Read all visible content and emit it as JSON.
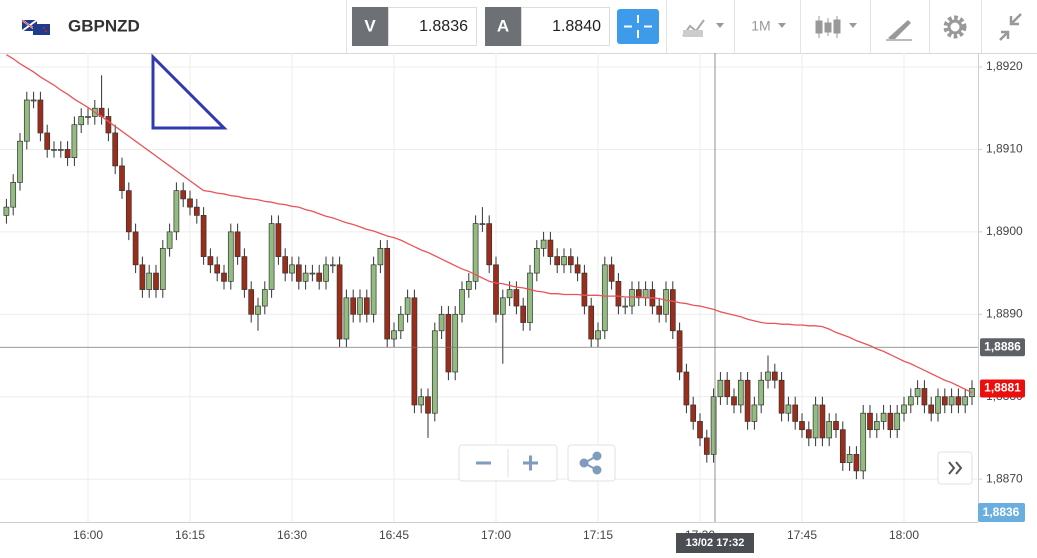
{
  "toolbar": {
    "symbol": "GBPNZD",
    "bid_tag": "V",
    "bid": "1.8836",
    "ask_tag": "A",
    "ask": "1.8840",
    "period": "1M"
  },
  "chart_data": {
    "type": "candlestick",
    "categories": [
      null,
      null,
      null,
      null,
      null,
      null,
      null,
      null,
      null,
      null,
      null,
      null,
      "16:00",
      null,
      null,
      null,
      null,
      null,
      null,
      null,
      null,
      null,
      null,
      null,
      null,
      null,
      null,
      "16:15",
      null,
      null,
      null,
      null,
      null,
      null,
      null,
      null,
      null,
      null,
      null,
      null,
      null,
      null,
      "16:30",
      null,
      null,
      null,
      null,
      null,
      null,
      null,
      null,
      null,
      null,
      null,
      null,
      null,
      null,
      "16:45",
      null,
      null,
      null,
      null,
      null,
      null,
      null,
      null,
      null,
      null,
      null,
      null,
      null,
      null,
      "17:00",
      null,
      null,
      null,
      null,
      null,
      null,
      null,
      null,
      null,
      null,
      null,
      null,
      null,
      null,
      "17:15",
      null,
      null,
      null,
      null,
      null,
      null,
      null,
      null,
      null,
      null,
      null,
      null,
      null,
      null,
      "17:30",
      null,
      null,
      null,
      null,
      null,
      null,
      null,
      null,
      null,
      null,
      null,
      null,
      null,
      null,
      "17:45",
      null,
      null,
      null,
      null,
      null,
      null,
      null,
      null,
      null,
      null,
      null,
      null,
      null,
      null,
      "18:00",
      null,
      null,
      null,
      null,
      null,
      null,
      null,
      null,
      null,
      null
    ],
    "open": [
      1.8902,
      1.8903,
      1.8906,
      1.8911,
      1.8916,
      1.8916,
      1.8912,
      1.891,
      1.891,
      1.891,
      1.8909,
      1.8913,
      1.8914,
      1.8914,
      1.8915,
      1.8914,
      1.8912,
      1.8908,
      1.8905,
      1.89,
      1.8896,
      1.8893,
      1.8895,
      1.8893,
      1.8898,
      1.89,
      1.8905,
      1.8904,
      1.8903,
      1.8902,
      1.8897,
      1.8896,
      1.8895,
      1.8894,
      1.89,
      1.8897,
      1.8893,
      1.889,
      1.8891,
      1.8893,
      1.8901,
      1.8897,
      1.8895,
      1.8896,
      1.8894,
      1.8895,
      1.8895,
      1.8894,
      1.8896,
      1.8896,
      1.8887,
      1.8892,
      1.889,
      1.8892,
      1.889,
      1.8896,
      1.8898,
      1.8887,
      1.8888,
      1.889,
      1.8892,
      1.8879,
      1.888,
      1.8878,
      1.8888,
      1.889,
      1.8883,
      1.889,
      1.8893,
      1.8894,
      1.8901,
      1.8901,
      1.8896,
      1.889,
      1.8892,
      1.8893,
      1.8891,
      1.8889,
      1.8895,
      1.8898,
      1.8899,
      1.8897,
      1.8896,
      1.8897,
      1.8896,
      1.8895,
      1.8891,
      1.8887,
      1.8888,
      1.8896,
      1.8894,
      1.8891,
      1.8891,
      1.8893,
      1.8892,
      1.8893,
      1.8891,
      1.889,
      1.8893,
      1.8888,
      1.8883,
      1.8879,
      1.8877,
      1.8875,
      1.8873,
      1.888,
      1.8882,
      1.888,
      1.8879,
      1.8882,
      1.8877,
      1.8879,
      1.8882,
      1.8883,
      1.8882,
      1.8878,
      1.8879,
      1.8877,
      1.8876,
      1.8875,
      1.8879,
      1.8875,
      1.8877,
      1.8876,
      1.8872,
      1.8873,
      1.8871,
      1.8878,
      1.8876,
      1.8877,
      1.8878,
      1.8876,
      1.8878,
      1.8879,
      1.888,
      1.8881,
      1.8879,
      1.8878,
      1.888,
      1.8879,
      1.888,
      1.8879,
      1.888
    ],
    "high": [
      1.8904,
      1.8907,
      1.8912,
      1.8917,
      1.8917,
      1.8917,
      1.8913,
      1.8911,
      1.8911,
      1.8911,
      1.8914,
      1.8915,
      1.8915,
      1.8916,
      1.8919,
      1.8915,
      1.8913,
      1.8909,
      1.8906,
      1.8901,
      1.8897,
      1.8896,
      1.8896,
      1.8899,
      1.8901,
      1.8906,
      1.8906,
      1.8905,
      1.8904,
      1.8903,
      1.8898,
      1.8897,
      1.8896,
      1.8901,
      1.8901,
      1.8898,
      1.8894,
      1.8892,
      1.8894,
      1.8902,
      1.8902,
      1.8898,
      1.8897,
      1.8897,
      1.8896,
      1.8896,
      1.8896,
      1.8897,
      1.8897,
      1.8897,
      1.8893,
      1.8893,
      1.8893,
      1.8893,
      1.8897,
      1.8899,
      1.8899,
      1.8889,
      1.8891,
      1.8893,
      1.8893,
      1.8881,
      1.8881,
      1.8889,
      1.8891,
      1.8891,
      1.8891,
      1.8894,
      1.8895,
      1.8902,
      1.8903,
      1.8902,
      1.8897,
      1.8893,
      1.8894,
      1.8894,
      1.8892,
      1.8896,
      1.8899,
      1.89,
      1.89,
      1.8898,
      1.8898,
      1.8898,
      1.8897,
      1.8896,
      1.8892,
      1.8889,
      1.8897,
      1.8897,
      1.8895,
      1.8892,
      1.8894,
      1.8894,
      1.8894,
      1.8894,
      1.8892,
      1.8894,
      1.8894,
      1.8889,
      1.8884,
      1.888,
      1.8878,
      1.8876,
      1.8881,
      1.8883,
      1.8883,
      1.8881,
      1.8883,
      1.8883,
      1.888,
      1.8883,
      1.8885,
      1.8884,
      1.8883,
      1.888,
      1.888,
      1.8878,
      1.8877,
      1.888,
      1.888,
      1.8878,
      1.8878,
      1.8877,
      1.8874,
      1.8874,
      1.8879,
      1.8879,
      1.8878,
      1.8879,
      1.8879,
      1.8879,
      1.888,
      1.8881,
      1.8882,
      1.8882,
      1.888,
      1.8881,
      1.8881,
      1.8881,
      1.8881,
      1.8881,
      1.8882
    ],
    "low": [
      1.8901,
      1.8902,
      1.8905,
      1.891,
      1.8915,
      1.8911,
      1.8909,
      1.8909,
      1.8909,
      1.8908,
      1.8908,
      1.8912,
      1.8913,
      1.8913,
      1.8913,
      1.8911,
      1.8907,
      1.8904,
      1.8899,
      1.8895,
      1.8892,
      1.8892,
      1.8892,
      1.8892,
      1.8897,
      1.8899,
      1.8903,
      1.8902,
      1.8901,
      1.8896,
      1.8895,
      1.8894,
      1.8893,
      1.8893,
      1.8896,
      1.8892,
      1.8889,
      1.8888,
      1.889,
      1.8892,
      1.8896,
      1.8894,
      1.8894,
      1.8893,
      1.8893,
      1.8894,
      1.8893,
      1.8893,
      1.8895,
      1.8886,
      1.8886,
      1.8889,
      1.8889,
      1.8889,
      1.8889,
      1.8895,
      1.8886,
      1.8886,
      1.8887,
      1.8889,
      1.8878,
      1.8878,
      1.8875,
      1.8877,
      1.8887,
      1.8882,
      1.8882,
      1.8889,
      1.8892,
      1.8893,
      1.89,
      1.8895,
      1.8889,
      1.8884,
      1.8891,
      1.889,
      1.8888,
      1.8888,
      1.8894,
      1.8897,
      1.8896,
      1.8895,
      1.8895,
      1.8895,
      1.8894,
      1.889,
      1.8886,
      1.8886,
      1.8887,
      1.8893,
      1.889,
      1.889,
      1.889,
      1.8891,
      1.8891,
      1.889,
      1.8889,
      1.8889,
      1.8887,
      1.8882,
      1.8878,
      1.8876,
      1.8874,
      1.8872,
      1.8872,
      1.8879,
      1.8879,
      1.8878,
      1.8878,
      1.8876,
      1.8876,
      1.8878,
      1.8881,
      1.8881,
      1.8877,
      1.8877,
      1.8876,
      1.8875,
      1.8874,
      1.8874,
      1.8874,
      1.8874,
      1.8875,
      1.8871,
      1.8871,
      1.887,
      1.887,
      1.8875,
      1.8875,
      1.8876,
      1.8875,
      1.8875,
      1.8877,
      1.8878,
      1.8879,
      1.8878,
      1.8877,
      1.8877,
      1.8878,
      1.8878,
      1.8878,
      1.8878,
      1.8879
    ],
    "close": [
      1.8903,
      1.8906,
      1.8911,
      1.8916,
      1.8916,
      1.8912,
      1.891,
      1.891,
      1.891,
      1.8909,
      1.8913,
      1.8914,
      1.8914,
      1.8915,
      1.8914,
      1.8912,
      1.8908,
      1.8905,
      1.89,
      1.8896,
      1.8893,
      1.8895,
      1.8893,
      1.8898,
      1.89,
      1.8905,
      1.8904,
      1.8903,
      1.8902,
      1.8897,
      1.8896,
      1.8895,
      1.8894,
      1.89,
      1.8897,
      1.8893,
      1.889,
      1.8891,
      1.8893,
      1.8901,
      1.8897,
      1.8895,
      1.8896,
      1.8894,
      1.8895,
      1.8895,
      1.8894,
      1.8896,
      1.8896,
      1.8887,
      1.8892,
      1.889,
      1.8892,
      1.889,
      1.8896,
      1.8898,
      1.8887,
      1.8888,
      1.889,
      1.8892,
      1.8879,
      1.888,
      1.8878,
      1.8888,
      1.889,
      1.8883,
      1.889,
      1.8893,
      1.8894,
      1.8901,
      1.8901,
      1.8896,
      1.889,
      1.8892,
      1.8893,
      1.8891,
      1.8889,
      1.8895,
      1.8898,
      1.8899,
      1.8897,
      1.8896,
      1.8897,
      1.8896,
      1.8895,
      1.8891,
      1.8887,
      1.8888,
      1.8896,
      1.8894,
      1.8891,
      1.8891,
      1.8893,
      1.8892,
      1.8893,
      1.8891,
      1.889,
      1.8893,
      1.8888,
      1.8883,
      1.8879,
      1.8877,
      1.8875,
      1.8873,
      1.888,
      1.8882,
      1.888,
      1.8879,
      1.8882,
      1.8877,
      1.8879,
      1.8882,
      1.8883,
      1.8882,
      1.8878,
      1.8879,
      1.8877,
      1.8876,
      1.8875,
      1.8879,
      1.8875,
      1.8877,
      1.8876,
      1.8872,
      1.8873,
      1.8871,
      1.8878,
      1.8876,
      1.8877,
      1.8878,
      1.8876,
      1.8878,
      1.8879,
      1.888,
      1.8881,
      1.8879,
      1.8878,
      1.888,
      1.8879,
      1.888,
      1.8879,
      1.888,
      1.8881
    ],
    "up_color": "#93bd80",
    "down_color": "#9c2d1b",
    "moving_average": {
      "color": "#e8555a",
      "values": [
        1.89215,
        1.8921,
        1.89204,
        1.89199,
        1.89194,
        1.89188,
        1.89183,
        1.89178,
        1.89172,
        1.89167,
        1.89161,
        1.89156,
        1.89151,
        1.89145,
        1.8914,
        1.89134,
        1.89128,
        1.89122,
        1.89116,
        1.8911,
        1.89104,
        1.89098,
        1.89092,
        1.89086,
        1.8908,
        1.89074,
        1.89068,
        1.89062,
        1.89056,
        1.8905,
        1.89049,
        1.89047,
        1.89046,
        1.89044,
        1.89043,
        1.89041,
        1.8904,
        1.89039,
        1.89037,
        1.89036,
        1.89034,
        1.89033,
        1.89031,
        1.8903,
        1.89027,
        1.89025,
        1.89022,
        1.89019,
        1.89017,
        1.89014,
        1.89011,
        1.89009,
        1.89006,
        1.89003,
        1.89001,
        1.88998,
        1.88995,
        1.88993,
        1.8899,
        1.88986,
        1.88982,
        1.88978,
        1.88975,
        1.88971,
        1.88967,
        1.88963,
        1.88959,
        1.88955,
        1.88952,
        1.88948,
        1.88944,
        1.8894,
        1.88938,
        1.88937,
        1.88935,
        1.88933,
        1.88932,
        1.8893,
        1.88928,
        1.88927,
        1.88925,
        1.88925,
        1.88924,
        1.88924,
        1.88924,
        1.88923,
        1.88923,
        1.88923,
        1.88922,
        1.88922,
        1.88922,
        1.88921,
        1.88921,
        1.88921,
        1.8892,
        1.8892,
        1.88919,
        1.88917,
        1.88916,
        1.88914,
        1.88913,
        1.88911,
        1.8891,
        1.88908,
        1.88906,
        1.88903,
        1.88901,
        1.88899,
        1.88897,
        1.88894,
        1.88892,
        1.8889,
        1.88889,
        1.88889,
        1.88888,
        1.88888,
        1.88887,
        1.88887,
        1.88886,
        1.88886,
        1.88885,
        1.88882,
        1.88878,
        1.88875,
        1.88872,
        1.88868,
        1.88865,
        1.88862,
        1.88858,
        1.88855,
        1.88851,
        1.88847,
        1.88843,
        1.8884,
        1.88836,
        1.88832,
        1.88828,
        1.88824,
        1.8882,
        1.88817,
        1.88813,
        1.88809,
        1.88805
      ]
    },
    "ylim": [
      1.88648,
      1.89217
    ],
    "yticks": [
      {
        "value": 1.887,
        "label": "1,8870"
      },
      {
        "value": 1.888,
        "label": "1,8880"
      },
      {
        "value": 1.889,
        "label": "1,8890"
      },
      {
        "value": 1.89,
        "label": "1,8900"
      },
      {
        "value": 1.891,
        "label": "1,8910"
      },
      {
        "value": 1.892,
        "label": "1,8920"
      }
    ],
    "grid": true,
    "crosshair": {
      "time": "13/02 17:32",
      "price": {
        "value": 1.8886,
        "label": "1,8886"
      }
    },
    "last_price": {
      "value": 1.8881,
      "label": "1,8881"
    },
    "lower_price_label": "1,8836"
  }
}
